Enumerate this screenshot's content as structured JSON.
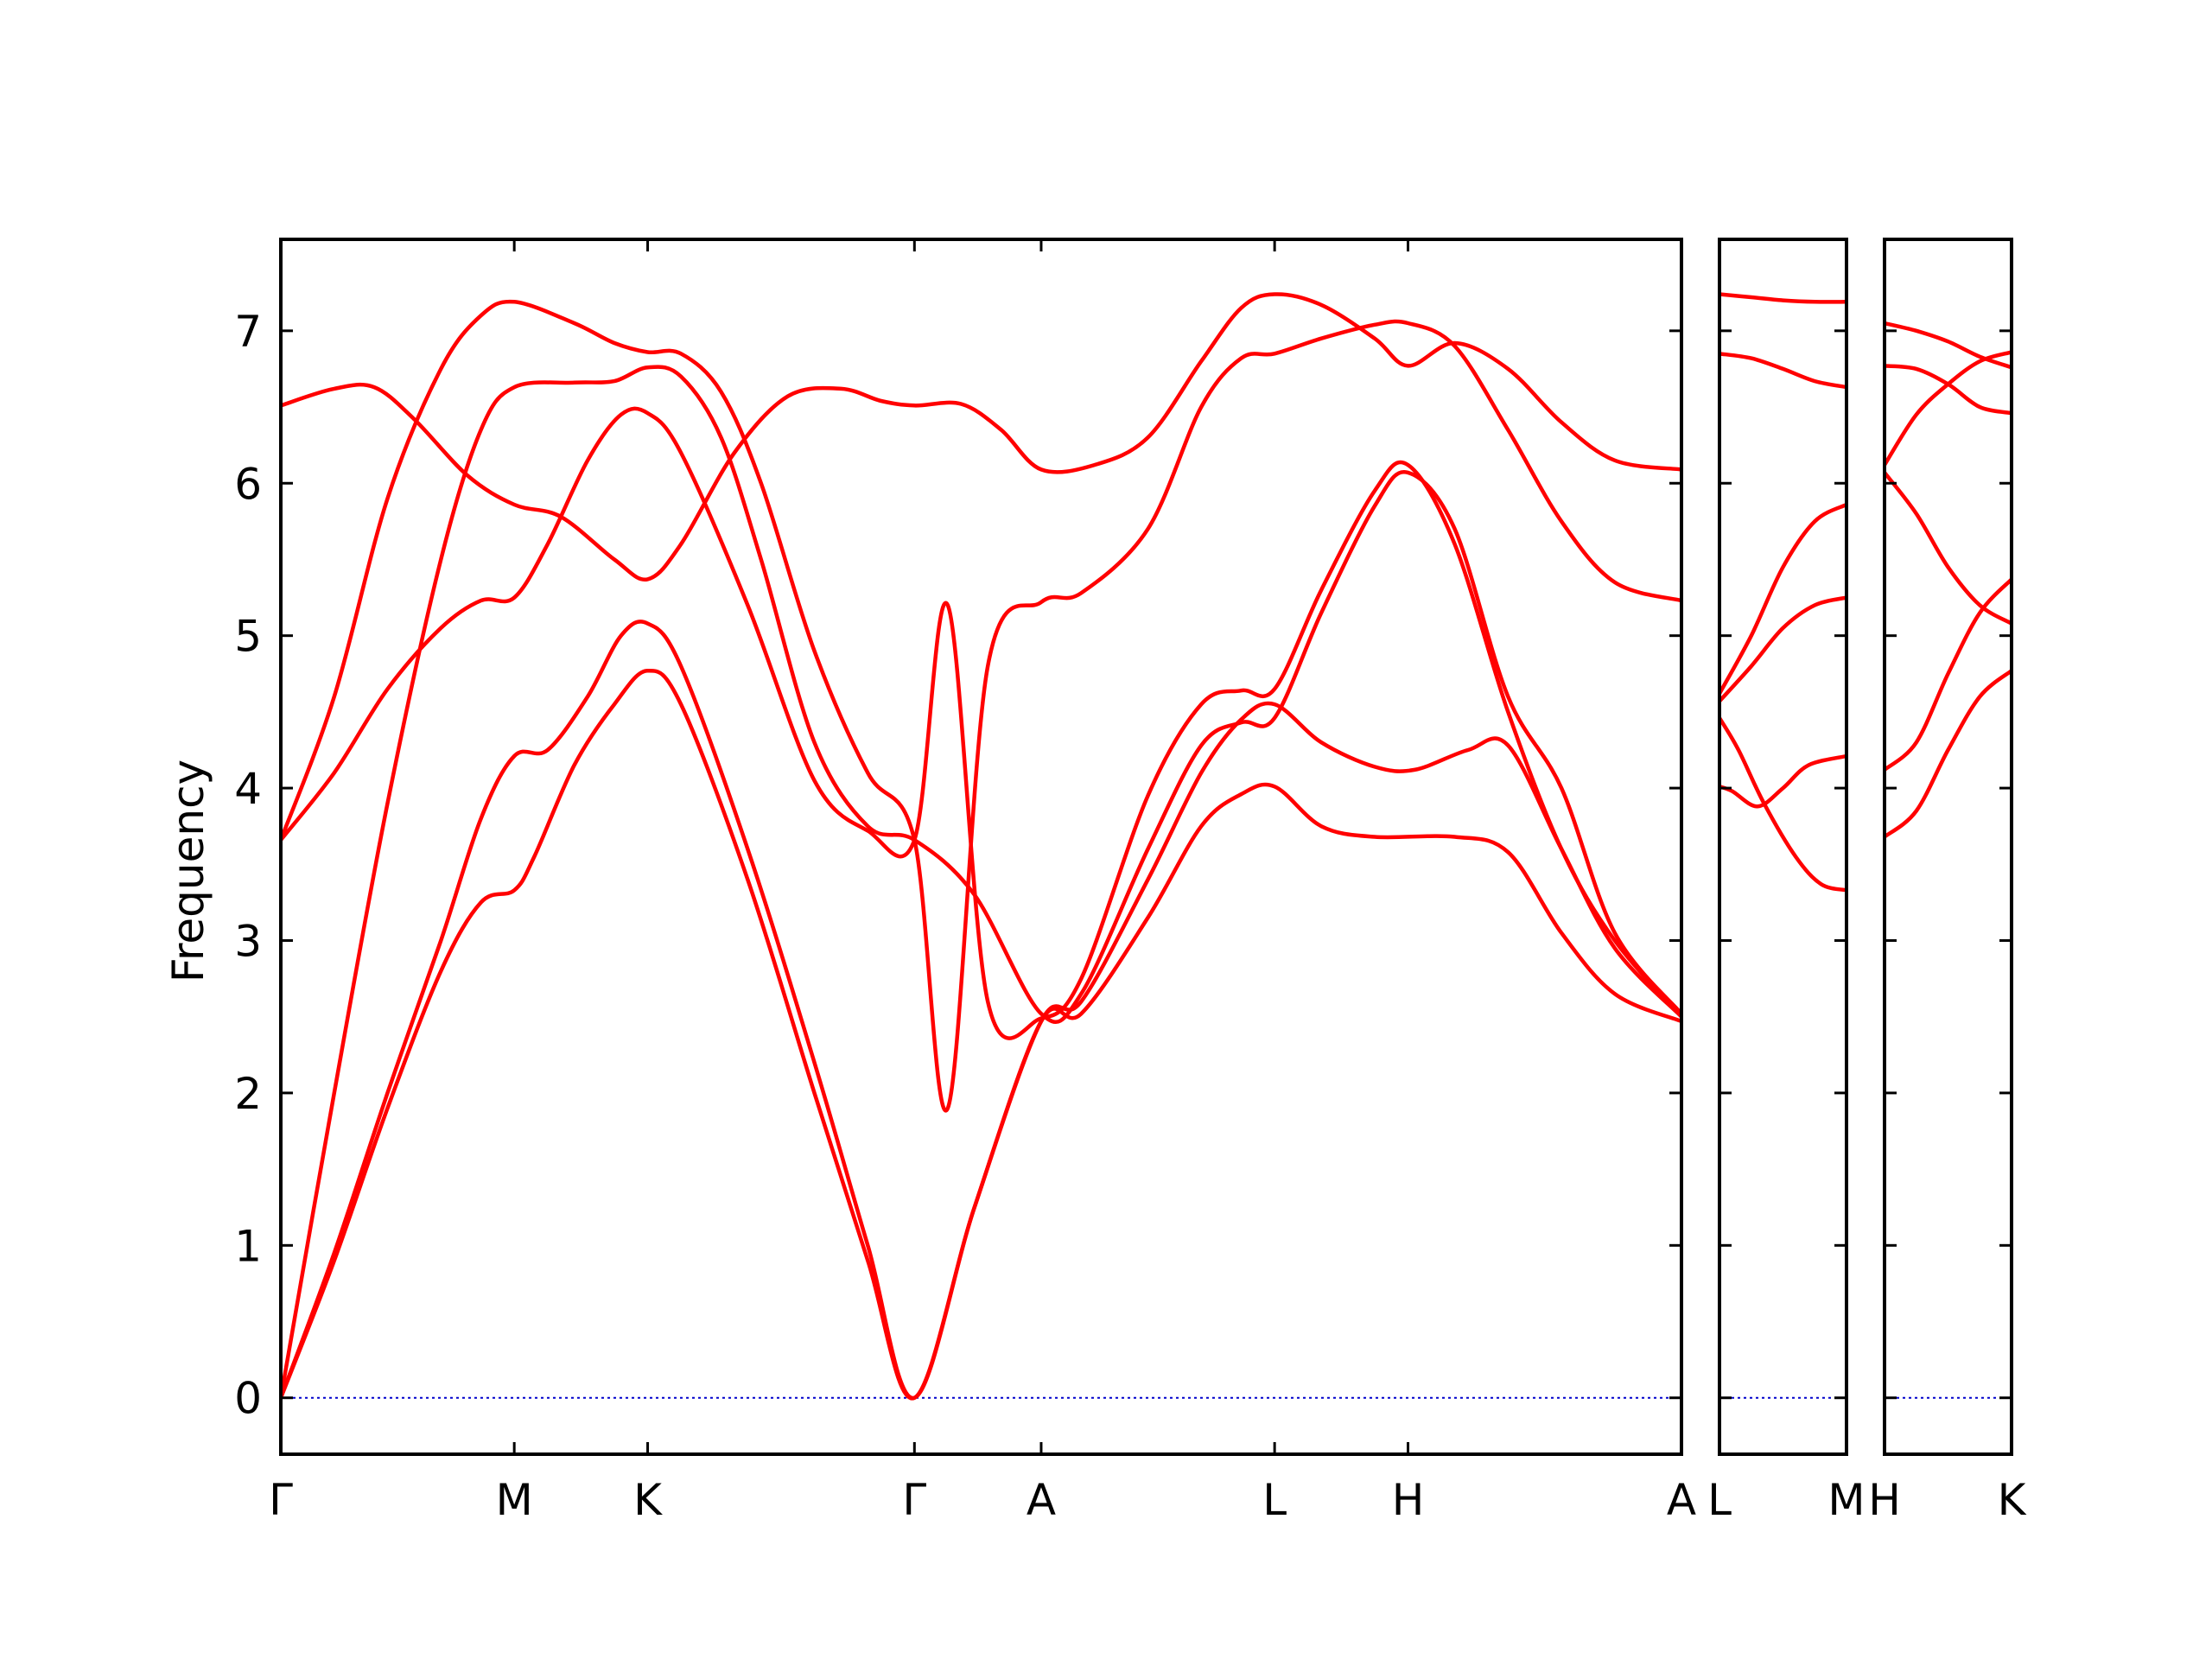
{
  "chart_data": {
    "type": "line",
    "ylabel": "Frequency",
    "ylim": [
      -0.37,
      7.6
    ],
    "yticks": [
      0,
      1,
      2,
      3,
      4,
      5,
      6,
      7
    ],
    "grid": false,
    "legend": "none",
    "colors": {
      "bands": "#ff0000",
      "zero_line": "#0000cc",
      "axes": "#000000"
    },
    "panels": [
      {
        "xlim": [
          0,
          10.5
        ],
        "xticks": [
          {
            "x": 0,
            "label": "Γ"
          },
          {
            "x": 1.75,
            "label": "M"
          },
          {
            "x": 2.75,
            "label": "K"
          },
          {
            "x": 4.75,
            "label": "Γ"
          },
          {
            "x": 5.7,
            "label": "A"
          },
          {
            "x": 7.45,
            "label": "L"
          },
          {
            "x": 8.45,
            "label": "H"
          },
          {
            "x": 10.5,
            "label": "A"
          }
        ],
        "bands": [
          [
            [
              0,
              0
            ],
            [
              0.4,
              0.9
            ],
            [
              0.8,
              1.9
            ],
            [
              1.2,
              2.8
            ],
            [
              1.5,
              3.25
            ],
            [
              1.75,
              3.33
            ],
            [
              1.9,
              3.55
            ],
            [
              2.2,
              4.15
            ],
            [
              2.5,
              4.55
            ],
            [
              2.75,
              4.77
            ],
            [
              3.0,
              4.55
            ],
            [
              3.5,
              3.4
            ],
            [
              4.0,
              2.0
            ],
            [
              4.4,
              0.9
            ],
            [
              4.75,
              0
            ],
            [
              5.2,
              1.25
            ],
            [
              5.7,
              2.47
            ],
            [
              6.0,
              2.52
            ],
            [
              6.5,
              3.15
            ],
            [
              6.9,
              3.75
            ],
            [
              7.2,
              3.96
            ],
            [
              7.45,
              4.01
            ],
            [
              7.8,
              3.75
            ],
            [
              8.2,
              3.68
            ],
            [
              8.8,
              3.68
            ],
            [
              9.2,
              3.58
            ],
            [
              9.6,
              3.05
            ],
            [
              10.0,
              2.65
            ],
            [
              10.5,
              2.47
            ]
          ],
          [
            [
              0,
              0
            ],
            [
              0.4,
              0.95
            ],
            [
              0.8,
              2.0
            ],
            [
              1.2,
              3.0
            ],
            [
              1.5,
              3.8
            ],
            [
              1.75,
              4.21
            ],
            [
              2.0,
              4.25
            ],
            [
              2.3,
              4.6
            ],
            [
              2.55,
              5.0
            ],
            [
              2.75,
              5.08
            ],
            [
              3.0,
              4.8
            ],
            [
              3.5,
              3.6
            ],
            [
              4.0,
              2.2
            ],
            [
              4.4,
              1.0
            ],
            [
              4.75,
              0
            ],
            [
              5.2,
              1.25
            ],
            [
              5.7,
              2.47
            ],
            [
              6.0,
              2.6
            ],
            [
              6.5,
              3.4
            ],
            [
              6.9,
              4.1
            ],
            [
              7.2,
              4.45
            ],
            [
              7.45,
              4.55
            ],
            [
              7.8,
              4.3
            ],
            [
              8.2,
              4.14
            ],
            [
              8.5,
              4.12
            ],
            [
              8.9,
              4.25
            ],
            [
              9.2,
              4.28
            ],
            [
              9.6,
              3.6
            ],
            [
              10.0,
              2.95
            ],
            [
              10.5,
              2.5
            ]
          ],
          [
            [
              0,
              0
            ],
            [
              0.4,
              2.0
            ],
            [
              0.8,
              3.9
            ],
            [
              1.2,
              5.5
            ],
            [
              1.5,
              6.35
            ],
            [
              1.75,
              6.63
            ],
            [
              2.2,
              6.66
            ],
            [
              2.5,
              6.67
            ],
            [
              2.75,
              6.76
            ],
            [
              3.0,
              6.7
            ],
            [
              3.3,
              6.3
            ],
            [
              3.6,
              5.5
            ],
            [
              4.0,
              4.3
            ],
            [
              4.4,
              3.75
            ],
            [
              4.75,
              3.66
            ],
            [
              5.2,
              3.3
            ],
            [
              5.7,
              2.52
            ],
            [
              6.0,
              2.65
            ],
            [
              6.5,
              3.6
            ],
            [
              6.9,
              4.28
            ],
            [
              7.2,
              4.43
            ],
            [
              7.45,
              4.46
            ],
            [
              7.8,
              5.15
            ],
            [
              8.2,
              5.85
            ],
            [
              8.45,
              6.07
            ],
            [
              8.8,
              5.7
            ],
            [
              9.2,
              4.6
            ],
            [
              9.6,
              4.0
            ],
            [
              10.0,
              3.05
            ],
            [
              10.5,
              2.52
            ]
          ],
          [
            [
              0,
              3.66
            ],
            [
              0.4,
              4.1
            ],
            [
              0.8,
              4.65
            ],
            [
              1.2,
              5.05
            ],
            [
              1.5,
              5.23
            ],
            [
              1.75,
              5.25
            ],
            [
              2.0,
              5.6
            ],
            [
              2.3,
              6.15
            ],
            [
              2.55,
              6.45
            ],
            [
              2.75,
              6.46
            ],
            [
              3.0,
              6.2
            ],
            [
              3.5,
              5.2
            ],
            [
              4.0,
              4.05
            ],
            [
              4.4,
              3.72
            ],
            [
              4.75,
              3.66
            ],
            [
              5.0,
              5.2
            ],
            [
              5.3,
              2.6
            ],
            [
              5.7,
              2.49
            ],
            [
              6.0,
              2.75
            ],
            [
              6.5,
              3.95
            ],
            [
              6.9,
              4.55
            ],
            [
              7.2,
              4.64
            ],
            [
              7.45,
              4.65
            ],
            [
              7.8,
              5.3
            ],
            [
              8.2,
              5.95
            ],
            [
              8.45,
              6.12
            ],
            [
              8.8,
              5.6
            ],
            [
              9.2,
              4.5
            ],
            [
              9.6,
              3.6
            ],
            [
              10.0,
              3.0
            ],
            [
              10.5,
              2.5
            ]
          ],
          [
            [
              0,
              3.66
            ],
            [
              0.4,
              4.6
            ],
            [
              0.8,
              5.9
            ],
            [
              1.2,
              6.75
            ],
            [
              1.5,
              7.1
            ],
            [
              1.75,
              7.19
            ],
            [
              2.2,
              7.05
            ],
            [
              2.5,
              6.92
            ],
            [
              2.75,
              6.86
            ],
            [
              3.0,
              6.85
            ],
            [
              3.3,
              6.6
            ],
            [
              3.6,
              6.0
            ],
            [
              4.0,
              4.9
            ],
            [
              4.4,
              4.1
            ],
            [
              4.75,
              3.66
            ],
            [
              5.0,
              1.9
            ],
            [
              5.3,
              4.8
            ],
            [
              5.7,
              5.22
            ],
            [
              6.0,
              5.28
            ],
            [
              6.5,
              5.7
            ],
            [
              6.9,
              6.5
            ],
            [
              7.2,
              6.82
            ],
            [
              7.45,
              6.85
            ],
            [
              7.8,
              6.95
            ],
            [
              8.2,
              7.04
            ],
            [
              8.45,
              7.05
            ],
            [
              8.8,
              6.9
            ],
            [
              9.2,
              6.35
            ],
            [
              9.6,
              5.75
            ],
            [
              10.0,
              5.35
            ],
            [
              10.5,
              5.23
            ]
          ],
          [
            [
              0,
              6.51
            ],
            [
              0.4,
              6.62
            ],
            [
              0.7,
              6.63
            ],
            [
              1.0,
              6.42
            ],
            [
              1.4,
              6.05
            ],
            [
              1.75,
              5.86
            ],
            [
              2.1,
              5.78
            ],
            [
              2.5,
              5.5
            ],
            [
              2.75,
              5.37
            ],
            [
              3.0,
              5.6
            ],
            [
              3.4,
              6.2
            ],
            [
              3.8,
              6.57
            ],
            [
              4.2,
              6.62
            ],
            [
              4.5,
              6.54
            ],
            [
              4.75,
              6.51
            ],
            [
              5.1,
              6.52
            ],
            [
              5.4,
              6.35
            ],
            [
              5.7,
              6.09
            ],
            [
              6.1,
              6.12
            ],
            [
              6.5,
              6.3
            ],
            [
              6.9,
              6.8
            ],
            [
              7.2,
              7.15
            ],
            [
              7.45,
              7.24
            ],
            [
              7.8,
              7.17
            ],
            [
              8.2,
              6.95
            ],
            [
              8.45,
              6.77
            ],
            [
              8.8,
              6.92
            ],
            [
              9.2,
              6.75
            ],
            [
              9.6,
              6.4
            ],
            [
              10.0,
              6.15
            ],
            [
              10.5,
              6.09
            ]
          ]
        ]
      },
      {
        "xlim": [
          0,
          1
        ],
        "xticks": [
          {
            "x": 0,
            "label": "L"
          },
          {
            "x": 1,
            "label": "M"
          }
        ],
        "bands": [
          [
            [
              0,
              4.01
            ],
            [
              0.1,
              3.98
            ],
            [
              0.3,
              3.88
            ],
            [
              0.5,
              4.0
            ],
            [
              0.7,
              4.15
            ],
            [
              1,
              4.21
            ]
          ],
          [
            [
              0,
              4.46
            ],
            [
              0.15,
              4.25
            ],
            [
              0.35,
              3.9
            ],
            [
              0.6,
              3.55
            ],
            [
              0.8,
              3.37
            ],
            [
              1,
              3.33
            ]
          ],
          [
            [
              0,
              4.57
            ],
            [
              0.25,
              4.8
            ],
            [
              0.5,
              5.05
            ],
            [
              0.75,
              5.2
            ],
            [
              1,
              5.25
            ]
          ],
          [
            [
              0,
              4.62
            ],
            [
              0.25,
              5.0
            ],
            [
              0.5,
              5.45
            ],
            [
              0.75,
              5.75
            ],
            [
              1,
              5.86
            ]
          ],
          [
            [
              0,
              6.85
            ],
            [
              0.25,
              6.82
            ],
            [
              0.5,
              6.75
            ],
            [
              0.75,
              6.67
            ],
            [
              1,
              6.63
            ]
          ],
          [
            [
              0,
              7.24
            ],
            [
              0.25,
              7.22
            ],
            [
              0.5,
              7.2
            ],
            [
              0.75,
              7.19
            ],
            [
              1,
              7.19
            ]
          ]
        ]
      },
      {
        "xlim": [
          0,
          1
        ],
        "xticks": [
          {
            "x": 0,
            "label": "H"
          },
          {
            "x": 1,
            "label": "K"
          }
        ],
        "bands": [
          [
            [
              0,
              3.68
            ],
            [
              0.25,
              3.85
            ],
            [
              0.5,
              4.25
            ],
            [
              0.75,
              4.6
            ],
            [
              1,
              4.77
            ]
          ],
          [
            [
              0,
              4.12
            ],
            [
              0.25,
              4.3
            ],
            [
              0.5,
              4.75
            ],
            [
              0.75,
              5.15
            ],
            [
              1,
              5.37
            ]
          ],
          [
            [
              0,
              6.07
            ],
            [
              0.25,
              5.8
            ],
            [
              0.5,
              5.45
            ],
            [
              0.75,
              5.2
            ],
            [
              1,
              5.08
            ]
          ],
          [
            [
              0,
              6.12
            ],
            [
              0.25,
              6.45
            ],
            [
              0.5,
              6.65
            ],
            [
              0.75,
              6.8
            ],
            [
              1,
              6.86
            ]
          ],
          [
            [
              0,
              6.77
            ],
            [
              0.25,
              6.75
            ],
            [
              0.5,
              6.65
            ],
            [
              0.75,
              6.5
            ],
            [
              1,
              6.46
            ]
          ],
          [
            [
              0,
              7.05
            ],
            [
              0.25,
              7.0
            ],
            [
              0.5,
              6.93
            ],
            [
              0.75,
              6.83
            ],
            [
              1,
              6.76
            ]
          ]
        ]
      }
    ]
  }
}
